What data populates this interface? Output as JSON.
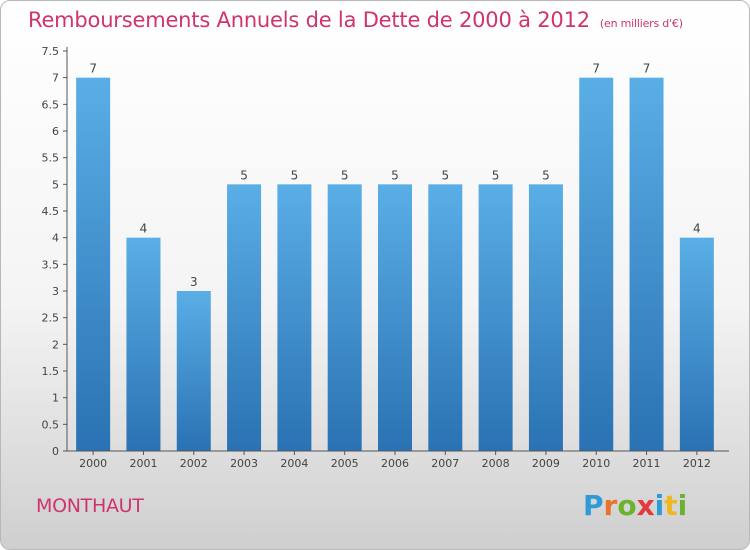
{
  "header": {
    "title": "Remboursements Annuels de la Dette de 2000 à 2012",
    "unit": "(en milliers d'€)"
  },
  "footer": {
    "commune": "MONTHAUT"
  },
  "logo": {
    "letters": [
      "P",
      "r",
      "o",
      "x",
      "i",
      "t",
      "i"
    ],
    "colors": [
      "#2f9ad6",
      "#e8732a",
      "#6bb22e",
      "#e03a3e",
      "#2f9ad6",
      "#f0b820",
      "#6bb22e"
    ]
  },
  "chart_data": {
    "type": "bar",
    "title": "Remboursements Annuels de la Dette de 2000 à 2012",
    "subtitle": "(en milliers d'€)",
    "xlabel": "",
    "ylabel": "",
    "categories": [
      "2000",
      "2001",
      "2002",
      "2003",
      "2004",
      "2005",
      "2006",
      "2007",
      "2008",
      "2009",
      "2010",
      "2011",
      "2012"
    ],
    "values": [
      7,
      4,
      3,
      5,
      5,
      5,
      5,
      5,
      5,
      5,
      7,
      7,
      4
    ],
    "value_labels": [
      "7",
      "4",
      "3",
      "5",
      "5",
      "5",
      "5",
      "5",
      "5",
      "5",
      "7",
      "7",
      "4"
    ],
    "ylim": [
      0,
      7.5
    ],
    "yticks": [
      "0",
      "0.5",
      "1",
      "1.5",
      "2",
      "2.5",
      "3",
      "3.5",
      "4",
      "4.5",
      "5",
      "5.5",
      "6",
      "6.5",
      "7",
      "7.5"
    ],
    "ytick_values": [
      0,
      0.5,
      1,
      1.5,
      2,
      2.5,
      3,
      3.5,
      4,
      4.5,
      5,
      5.5,
      6,
      6.5,
      7,
      7.5
    ],
    "grid": false,
    "colors": {
      "bar": "#3d8fd0",
      "bar_light": "#5aaee6",
      "bar_dark": "#2a72b3",
      "title": "#d0336e"
    }
  }
}
